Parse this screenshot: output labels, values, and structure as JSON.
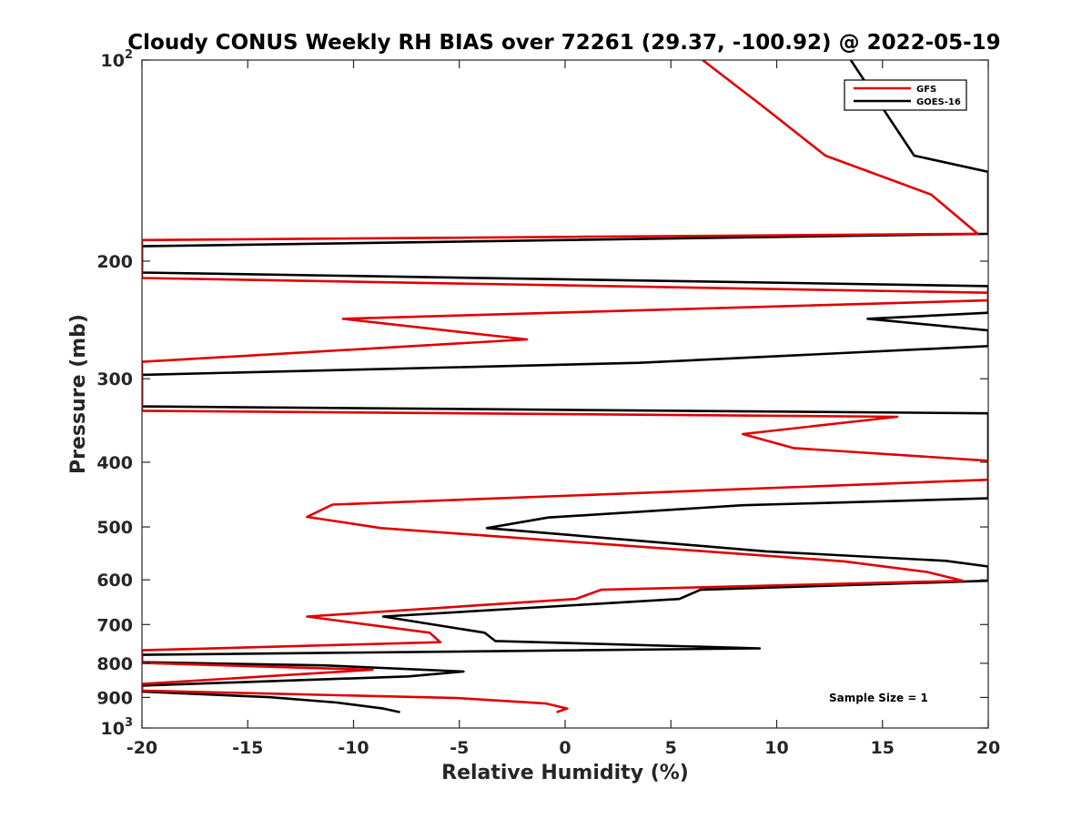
{
  "chart_data": {
    "type": "line",
    "title": "Cloudy CONUS Weekly RH BIAS over 72261 (29.37, -100.92) @ 2022-05-19",
    "xlabel": "Relative Humidity (%)",
    "ylabel": "Pressure (mb)",
    "xlim": [
      -20,
      20
    ],
    "ylim": [
      100,
      1000
    ],
    "yscale": "log",
    "y_reversed": true,
    "grid": false,
    "legend_position": "top-right",
    "x_ticks": [
      -20,
      -15,
      -10,
      -5,
      0,
      5,
      10,
      15,
      20
    ],
    "x_tick_labels": [
      "-20",
      "-15",
      "-10",
      "-5",
      "0",
      "5",
      "10",
      "15",
      "20"
    ],
    "y_ticks": [
      {
        "value": 100,
        "base": "10",
        "exp": "2"
      },
      {
        "value": 200,
        "label": "200"
      },
      {
        "value": 300,
        "label": "300"
      },
      {
        "value": 400,
        "label": "400"
      },
      {
        "value": 500,
        "label": "500"
      },
      {
        "value": 600,
        "label": "600"
      },
      {
        "value": 700,
        "label": "700"
      },
      {
        "value": 800,
        "label": "800"
      },
      {
        "value": 900,
        "label": "900"
      },
      {
        "value": 1000,
        "base": "10",
        "exp": "3"
      }
    ],
    "annotation": "Sample Size = 1",
    "series": [
      {
        "name": "GFS",
        "color": "#e00000",
        "points": [
          [
            6.5,
            100
          ],
          [
            9.3,
            117
          ],
          [
            12.3,
            139
          ],
          [
            17.3,
            159
          ],
          [
            19.5,
            182
          ],
          [
            -20,
            186
          ],
          [
            -20,
            212
          ],
          [
            20,
            223
          ],
          [
            20,
            229
          ],
          [
            -10.5,
            244
          ],
          [
            -1.8,
            262
          ],
          [
            -20,
            283
          ],
          [
            -20,
            335
          ],
          [
            15.7,
            342
          ],
          [
            8.4,
            363
          ],
          [
            10.8,
            381
          ],
          [
            20,
            398
          ],
          [
            20,
            425
          ],
          [
            -11,
            463
          ],
          [
            -12.2,
            483
          ],
          [
            -8.7,
            502
          ],
          [
            13.2,
            563
          ],
          [
            17.1,
            584
          ],
          [
            18.8,
            602
          ],
          [
            1.7,
            621
          ],
          [
            0.5,
            641
          ],
          [
            -12.2,
            681
          ],
          [
            -6.4,
            720
          ],
          [
            -5.9,
            744
          ],
          [
            -20,
            765
          ],
          [
            -20,
            799
          ],
          [
            -9.1,
            818
          ],
          [
            -20,
            859
          ],
          [
            -20,
            879
          ],
          [
            -5.1,
            902
          ],
          [
            -0.9,
            919
          ],
          [
            0.1,
            935
          ],
          [
            -0.4,
            947
          ]
        ]
      },
      {
        "name": "GOES-16",
        "color": "#000000",
        "points": [
          [
            13.5,
            100
          ],
          [
            16.5,
            139
          ],
          [
            20,
            147
          ],
          [
            20,
            182
          ],
          [
            -20,
            190
          ],
          [
            -20,
            208
          ],
          [
            20,
            218
          ],
          [
            20,
            239
          ],
          [
            14.3,
            244
          ],
          [
            20,
            254
          ],
          [
            20,
            268
          ],
          [
            3.5,
            284
          ],
          [
            -20,
            296
          ],
          [
            -20,
            330
          ],
          [
            20,
            338
          ],
          [
            20,
            453
          ],
          [
            8.4,
            464
          ],
          [
            -0.8,
            484
          ],
          [
            -3.7,
            502
          ],
          [
            9.5,
            544
          ],
          [
            18,
            562
          ],
          [
            20,
            573
          ],
          [
            20,
            602
          ],
          [
            6.4,
            621
          ],
          [
            5.4,
            641
          ],
          [
            -8.6,
            681
          ],
          [
            -3.8,
            720
          ],
          [
            -3.3,
            741
          ],
          [
            9.2,
            760
          ],
          [
            -20,
            777
          ],
          [
            -20,
            797
          ],
          [
            -11.4,
            806
          ],
          [
            -4.8,
            823
          ],
          [
            -7.4,
            837
          ],
          [
            -20,
            864
          ],
          [
            -20,
            882
          ],
          [
            -14,
            899
          ],
          [
            -10.8,
            916
          ],
          [
            -8.6,
            935
          ],
          [
            -7.8,
            947
          ]
        ]
      }
    ]
  }
}
